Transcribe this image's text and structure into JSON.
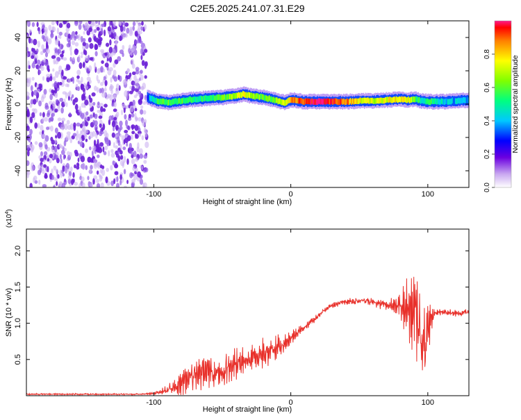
{
  "title": "C2E5.2025.241.07.31.E29",
  "chart_data": [
    {
      "type": "heatmap",
      "title": "C2E5.2025.241.07.31.E29",
      "xlabel": "Height of straight line (km)",
      "ylabel": "Frequency (Hz)",
      "xlim": [
        -193,
        130
      ],
      "ylim": [
        -50,
        50
      ],
      "x_ticks": [
        -100,
        0,
        100
      ],
      "x_tick_labels": [
        "-100",
        "0",
        "100"
      ],
      "y_ticks": [
        -40,
        -20,
        0,
        20,
        40
      ],
      "y_tick_labels": [
        "-40",
        "-20",
        "0",
        "20",
        "40"
      ],
      "noise_region": {
        "x_from": -193,
        "x_to": -105
      },
      "ridge": {
        "x": [
          -105,
          -98,
          -90,
          -80,
          -70,
          -60,
          -50,
          -40,
          -35,
          -30,
          -20,
          -10,
          -5,
          0,
          10,
          20,
          30,
          40,
          50,
          60,
          70,
          80,
          85,
          90,
          95,
          100,
          110,
          120,
          130
        ],
        "freq": [
          4,
          2,
          1,
          2,
          3,
          3.5,
          4,
          5,
          6,
          5,
          4,
          2,
          1,
          2.5,
          1.5,
          1.5,
          1.5,
          1.5,
          2,
          2,
          2.5,
          3,
          2.5,
          3,
          2,
          1.5,
          1.5,
          2,
          2.5
        ],
        "amplitude": [
          0.35,
          0.55,
          0.6,
          0.55,
          0.5,
          0.55,
          0.6,
          0.7,
          0.75,
          0.7,
          0.6,
          0.65,
          0.7,
          0.85,
          0.95,
          1.0,
          0.95,
          0.9,
          0.75,
          0.7,
          0.75,
          0.8,
          0.75,
          0.6,
          0.45,
          0.55,
          0.45,
          0.4,
          0.4
        ]
      },
      "colorbar": {
        "label": "Normalized spectral amplitude",
        "range": [
          0,
          1
        ],
        "ticks": [
          0.0,
          0.2,
          0.4,
          0.6,
          0.8
        ],
        "tick_labels": [
          "0.0",
          "0.2",
          "0.4",
          "0.6",
          "0.8"
        ]
      }
    },
    {
      "type": "line",
      "xlabel": "Height of straight line (km)",
      "ylabel": "SNR (10 * v/v)",
      "y_multiplier": "(x10",
      "y_multiplier_exp": "4",
      "y_multiplier_close": ")",
      "xlim": [
        -193,
        130
      ],
      "ylim": [
        0,
        2.3
      ],
      "x_ticks": [
        -100,
        0,
        100
      ],
      "x_tick_labels": [
        "-100",
        "0",
        "100"
      ],
      "y_ticks": [
        0.5,
        1.0,
        1.5,
        2.0
      ],
      "y_tick_labels": [
        "0.5",
        "1.0",
        "1.5",
        "2.0"
      ],
      "series": [
        {
          "name": "SNR",
          "color": "#e8302a",
          "x": [
            -193,
            -150,
            -110,
            -100,
            -95,
            -90,
            -85,
            -80,
            -75,
            -70,
            -65,
            -60,
            -55,
            -50,
            -45,
            -40,
            -35,
            -30,
            -25,
            -20,
            -15,
            -10,
            -5,
            0,
            5,
            10,
            15,
            20,
            25,
            30,
            35,
            40,
            45,
            50,
            55,
            60,
            65,
            70,
            75,
            80,
            82,
            85,
            88,
            90,
            92,
            94,
            96,
            98,
            100,
            102,
            105,
            110,
            115,
            120,
            125,
            130
          ],
          "y": [
            0.02,
            0.02,
            0.02,
            0.03,
            0.05,
            0.08,
            0.12,
            0.18,
            0.25,
            0.28,
            0.35,
            0.35,
            0.3,
            0.38,
            0.4,
            0.42,
            0.45,
            0.5,
            0.52,
            0.58,
            0.62,
            0.65,
            0.7,
            0.78,
            0.88,
            0.95,
            1.02,
            1.1,
            1.18,
            1.24,
            1.28,
            1.3,
            1.3,
            1.31,
            1.3,
            1.29,
            1.27,
            1.26,
            1.25,
            1.24,
            1.22,
            1.2,
            1.18,
            1.15,
            1.1,
            1.0,
            0.75,
            0.55,
            0.85,
            1.05,
            1.15,
            1.16,
            1.15,
            1.14,
            1.14,
            1.15
          ],
          "amp": [
            0.01,
            0.01,
            0.01,
            0.02,
            0.04,
            0.06,
            0.12,
            0.18,
            0.2,
            0.24,
            0.25,
            0.22,
            0.2,
            0.2,
            0.22,
            0.2,
            0.2,
            0.2,
            0.18,
            0.2,
            0.2,
            0.18,
            0.14,
            0.1,
            0.08,
            0.06,
            0.05,
            0.04,
            0.04,
            0.04,
            0.04,
            0.04,
            0.04,
            0.04,
            0.05,
            0.06,
            0.07,
            0.08,
            0.1,
            0.16,
            0.3,
            0.38,
            0.45,
            0.55,
            0.6,
            0.55,
            0.6,
            0.6,
            0.45,
            0.2,
            0.05,
            0.04,
            0.04,
            0.04,
            0.04,
            0.04
          ]
        }
      ]
    }
  ]
}
